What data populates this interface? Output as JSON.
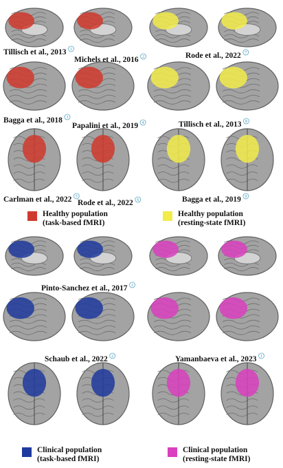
{
  "panels": [
    {
      "color": "#d03a2e",
      "legend": [
        "Healthy population",
        "(task-based fMRI)"
      ],
      "labels": [
        {
          "text": "Tillisch et al., 2013",
          "badge": "1"
        },
        {
          "text": "Michels et al., 2016",
          "badge": "2"
        },
        {
          "text": "Bagga et al., 2018",
          "badge": "3"
        },
        {
          "text": "Papalini et al., 2019",
          "badge": "4"
        },
        {
          "text": "Carlman et al., 2022",
          "badge": "5"
        },
        {
          "text": "Rode et al., 2022",
          "badge": "6"
        }
      ]
    },
    {
      "color": "#f2ec4a",
      "legend": [
        "Healthy population",
        "(resting-state fMRI)"
      ],
      "labels": [
        {
          "text": "Rode et al., 2022",
          "badge": "7"
        },
        {
          "text": "Tillisch et al., 2013",
          "badge": "8"
        },
        {
          "text": "Bagga et al., 2019",
          "badge": "9"
        }
      ]
    },
    {
      "color": "#1f3a9e",
      "legend": [
        "Clinical population",
        "(task-based fMRI)"
      ],
      "labels": [
        {
          "text": "Pinto-Sanchez et al., 2017",
          "badge": "1"
        },
        {
          "text": "Schaub et al., 2022",
          "badge": "2"
        }
      ]
    },
    {
      "color": "#d93fbf",
      "legend": [
        "Clinical population",
        "(resting-state fMRI)"
      ],
      "labels": [
        {
          "text": "Yamanbaeva et al., 2023",
          "badge": "1"
        }
      ]
    }
  ]
}
